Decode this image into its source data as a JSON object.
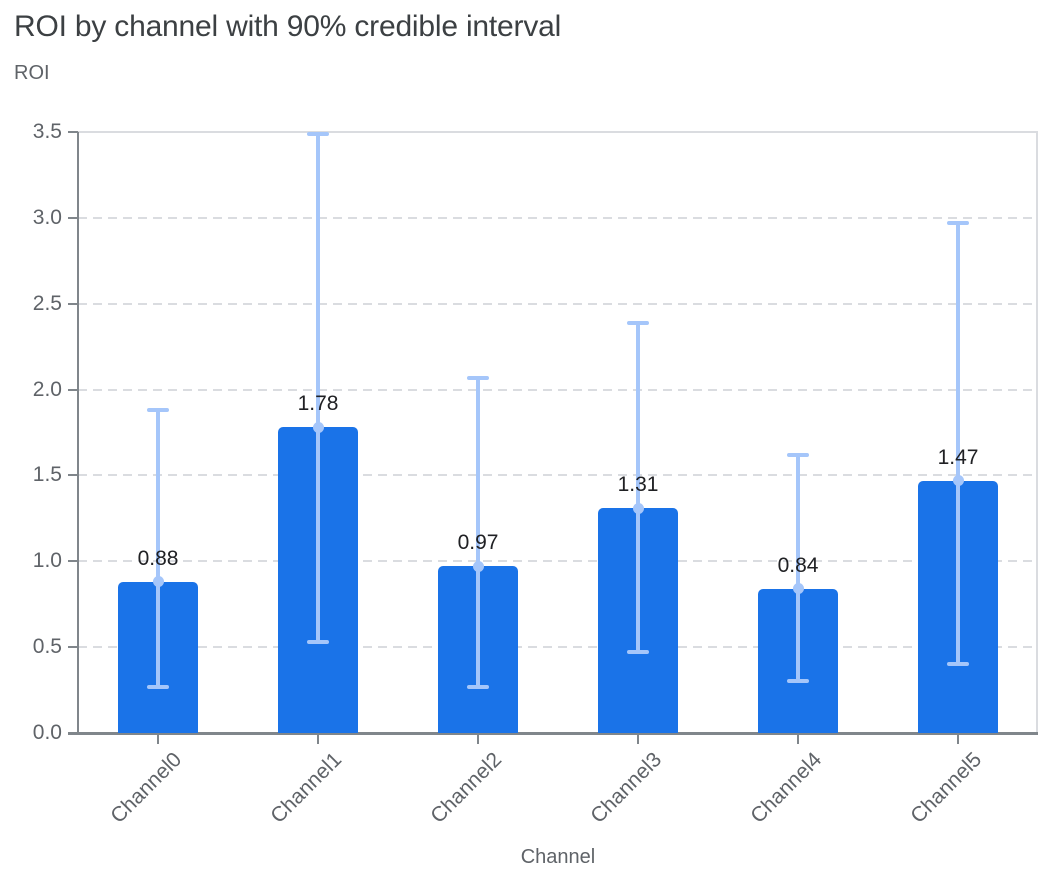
{
  "chart_data": {
    "type": "bar",
    "title": "ROI by channel with 90% credible interval",
    "ylabel": "ROI",
    "xlabel": "Channel",
    "categories": [
      "Channel0",
      "Channel1",
      "Channel2",
      "Channel3",
      "Channel4",
      "Channel5"
    ],
    "values": [
      0.88,
      1.78,
      0.97,
      1.31,
      0.84,
      1.47
    ],
    "value_labels": [
      "0.88",
      "1.78",
      "0.97",
      "1.31",
      "0.84",
      "1.47"
    ],
    "ci_lower": [
      0.27,
      0.53,
      0.27,
      0.47,
      0.3,
      0.4
    ],
    "ci_upper": [
      1.88,
      3.49,
      2.07,
      2.39,
      1.62,
      2.97
    ],
    "ylim": [
      0,
      3.5
    ],
    "yticks": [
      "0.0",
      "0.5",
      "1.0",
      "1.5",
      "2.0",
      "2.5",
      "3.0",
      "3.5"
    ],
    "grid": "horizontal dashed, solid top and right border, legend none",
    "colors": {
      "bar": "#1A73E8",
      "error_bar": "#A5C6FA",
      "grid": "#DADCE0",
      "axis": "#80868B",
      "title": "#3C4043",
      "axis_label": "#5F6368",
      "tick_label": "#5F6368",
      "value_label": "#202124",
      "background": "#FFFFFF"
    }
  }
}
